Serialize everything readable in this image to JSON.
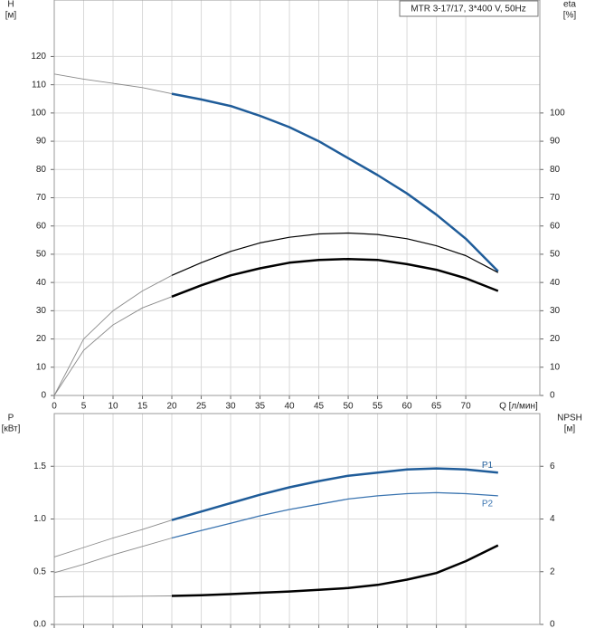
{
  "chart_data": [
    {
      "type": "line",
      "title": "MTR 3-17/17, 3*400 V, 50Hz",
      "y_label": "H",
      "y_unit": "[м]",
      "y2_label": "eta",
      "y2_unit": "[%]",
      "x_label": "Q [л/мин]",
      "x": [
        0,
        5,
        10,
        15,
        20,
        25,
        30,
        35,
        40,
        45,
        50,
        55,
        60,
        65,
        70,
        75.5
      ],
      "xlim": [
        0,
        82.6
      ],
      "xticks": [
        0,
        5,
        10,
        15,
        20,
        25,
        30,
        35,
        40,
        45,
        50,
        55,
        60,
        65,
        70
      ],
      "x_tick_labels": true,
      "ylim": [
        0,
        140
      ],
      "yticks": [
        0,
        10,
        20,
        30,
        40,
        50,
        60,
        70,
        80,
        90,
        100,
        110,
        120
      ],
      "y2lim": [
        0,
        140
      ],
      "y2ticks": [
        0,
        10,
        20,
        30,
        40,
        50,
        60,
        70,
        80,
        90,
        100
      ],
      "grid": true,
      "highlight_from_x": 20,
      "series": [
        {
          "color": "#1f5c99",
          "width": 2.5,
          "values": [
            113.8,
            112,
            110.5,
            109,
            106.8,
            104.8,
            102.5,
            99,
            95,
            90,
            84,
            78,
            71.5,
            64,
            55.5,
            44
          ]
        },
        {
          "color": "#000000",
          "width": 1.2,
          "axis": "y2",
          "values": [
            0,
            20,
            30,
            37,
            42.5,
            47,
            51,
            54,
            56,
            57.2,
            57.5,
            57,
            55.5,
            53,
            49.5,
            43.5
          ]
        },
        {
          "color": "#000000",
          "width": 2.5,
          "axis": "y2",
          "values": [
            0,
            16,
            25,
            31,
            35,
            39,
            42.5,
            45,
            47,
            48,
            48.3,
            48,
            46.5,
            44.5,
            41.5,
            37
          ]
        }
      ]
    },
    {
      "type": "line",
      "y_label": "P",
      "y_unit": "[кВт]",
      "y2_label": "NPSH",
      "y2_unit": "[м]",
      "x": [
        0,
        5,
        10,
        15,
        20,
        25,
        30,
        35,
        40,
        45,
        50,
        55,
        60,
        65,
        70,
        75.5
      ],
      "xlim": [
        0,
        82.6
      ],
      "xticks": [
        0,
        5,
        10,
        15,
        20,
        25,
        30,
        35,
        40,
        45,
        50,
        55,
        60,
        65,
        70
      ],
      "x_tick_labels": false,
      "ylim": [
        0,
        2
      ],
      "yticks": [
        {
          "value": 0,
          "label": "0.0"
        },
        0.5,
        {
          "value": 1,
          "label": "1.0"
        },
        1.5
      ],
      "y2lim": [
        0,
        8
      ],
      "y2ticks": [
        0,
        2,
        4,
        6
      ],
      "grid": true,
      "highlight_from_x": 20,
      "series": [
        {
          "name": "P1",
          "color": "#1f5c99",
          "width": 2.5,
          "values": [
            0.64,
            0.73,
            0.82,
            0.9,
            0.99,
            1.07,
            1.15,
            1.23,
            1.3,
            1.36,
            1.41,
            1.44,
            1.47,
            1.48,
            1.47,
            1.44
          ]
        },
        {
          "name": "P2",
          "color": "#3a74b0",
          "width": 1.3,
          "values": [
            0.49,
            0.57,
            0.66,
            0.74,
            0.82,
            0.89,
            0.96,
            1.03,
            1.09,
            1.14,
            1.19,
            1.22,
            1.24,
            1.25,
            1.24,
            1.22
          ]
        },
        {
          "color": "#000000",
          "width": 2.5,
          "axis": "y2",
          "values": [
            1.05,
            1.06,
            1.06,
            1.07,
            1.08,
            1.11,
            1.15,
            1.2,
            1.25,
            1.31,
            1.38,
            1.5,
            1.7,
            1.95,
            2.4,
            3.0
          ]
        }
      ]
    }
  ]
}
